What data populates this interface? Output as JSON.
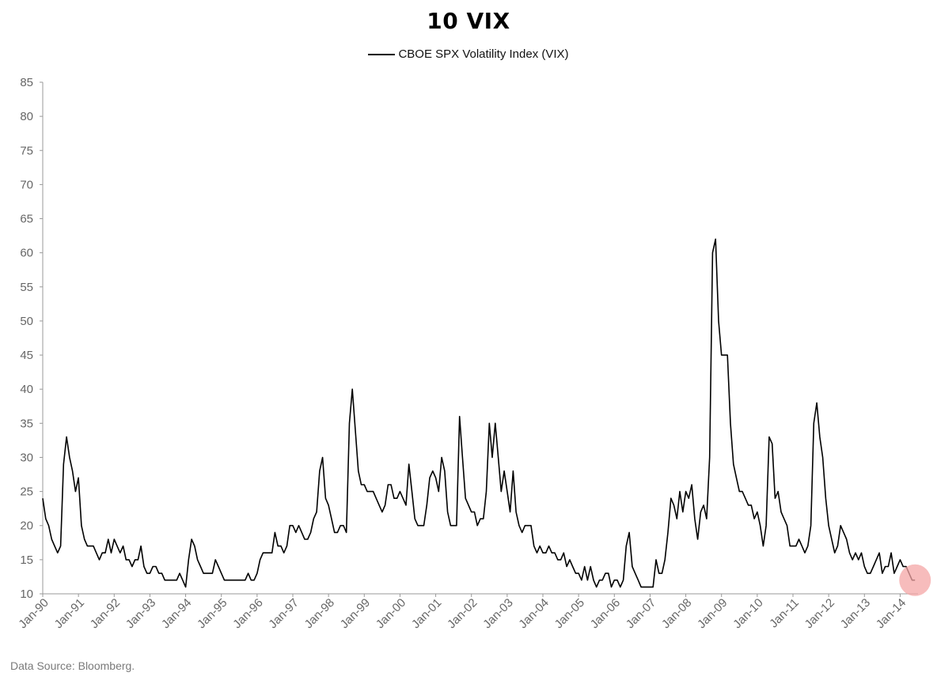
{
  "chart_data": {
    "type": "line",
    "title": "10 VIX",
    "source_note": "Data Source: Bloomberg.",
    "xlabel": "",
    "ylabel": "",
    "ylim": [
      10,
      85
    ],
    "yticks": [
      10,
      15,
      20,
      25,
      30,
      35,
      40,
      45,
      50,
      55,
      60,
      65,
      70,
      75,
      80,
      85
    ],
    "xticks": [
      "Jan-90",
      "Jan-91",
      "Jan-92",
      "Jan-93",
      "Jan-94",
      "Jan-95",
      "Jan-96",
      "Jan-97",
      "Jan-98",
      "Jan-99",
      "Jan-00",
      "Jan-01",
      "Jan-02",
      "Jan-03",
      "Jan-04",
      "Jan-05",
      "Jan-06",
      "Jan-07",
      "Jan-08",
      "Jan-09",
      "Jan-10",
      "Jan-11",
      "Jan-12",
      "Jan-13",
      "Jan-14"
    ],
    "xlim": [
      "1990-01",
      "2014-07"
    ],
    "grid": false,
    "legend_position": "top-center",
    "highlight": {
      "x": "2014-06",
      "y": 12,
      "color": "#f4a6a6"
    },
    "series": [
      {
        "name": "CBOE SPX Volatility Index (VIX)",
        "color": "#000000",
        "x": [
          "1990-01",
          "1990-02",
          "1990-03",
          "1990-04",
          "1990-05",
          "1990-06",
          "1990-07",
          "1990-08",
          "1990-09",
          "1990-10",
          "1990-11",
          "1990-12",
          "1991-01",
          "1991-02",
          "1991-03",
          "1991-04",
          "1991-05",
          "1991-06",
          "1991-07",
          "1991-08",
          "1991-09",
          "1991-10",
          "1991-11",
          "1991-12",
          "1992-01",
          "1992-02",
          "1992-03",
          "1992-04",
          "1992-05",
          "1992-06",
          "1992-07",
          "1992-08",
          "1992-09",
          "1992-10",
          "1992-11",
          "1992-12",
          "1993-01",
          "1993-02",
          "1993-03",
          "1993-04",
          "1993-05",
          "1993-06",
          "1993-07",
          "1993-08",
          "1993-09",
          "1993-10",
          "1993-11",
          "1993-12",
          "1994-01",
          "1994-02",
          "1994-03",
          "1994-04",
          "1994-05",
          "1994-06",
          "1994-07",
          "1994-08",
          "1994-09",
          "1994-10",
          "1994-11",
          "1994-12",
          "1995-01",
          "1995-02",
          "1995-03",
          "1995-04",
          "1995-05",
          "1995-06",
          "1995-07",
          "1995-08",
          "1995-09",
          "1995-10",
          "1995-11",
          "1995-12",
          "1996-01",
          "1996-02",
          "1996-03",
          "1996-04",
          "1996-05",
          "1996-06",
          "1996-07",
          "1996-08",
          "1996-09",
          "1996-10",
          "1996-11",
          "1996-12",
          "1997-01",
          "1997-02",
          "1997-03",
          "1997-04",
          "1997-05",
          "1997-06",
          "1997-07",
          "1997-08",
          "1997-09",
          "1997-10",
          "1997-11",
          "1997-12",
          "1998-01",
          "1998-02",
          "1998-03",
          "1998-04",
          "1998-05",
          "1998-06",
          "1998-07",
          "1998-08",
          "1998-09",
          "1998-10",
          "1998-11",
          "1998-12",
          "1999-01",
          "1999-02",
          "1999-03",
          "1999-04",
          "1999-05",
          "1999-06",
          "1999-07",
          "1999-08",
          "1999-09",
          "1999-10",
          "1999-11",
          "1999-12",
          "2000-01",
          "2000-02",
          "2000-03",
          "2000-04",
          "2000-05",
          "2000-06",
          "2000-07",
          "2000-08",
          "2000-09",
          "2000-10",
          "2000-11",
          "2000-12",
          "2001-01",
          "2001-02",
          "2001-03",
          "2001-04",
          "2001-05",
          "2001-06",
          "2001-07",
          "2001-08",
          "2001-09",
          "2001-10",
          "2001-11",
          "2001-12",
          "2002-01",
          "2002-02",
          "2002-03",
          "2002-04",
          "2002-05",
          "2002-06",
          "2002-07",
          "2002-08",
          "2002-09",
          "2002-10",
          "2002-11",
          "2002-12",
          "2003-01",
          "2003-02",
          "2003-03",
          "2003-04",
          "2003-05",
          "2003-06",
          "2003-07",
          "2003-08",
          "2003-09",
          "2003-10",
          "2003-11",
          "2003-12",
          "2004-01",
          "2004-02",
          "2004-03",
          "2004-04",
          "2004-05",
          "2004-06",
          "2004-07",
          "2004-08",
          "2004-09",
          "2004-10",
          "2004-11",
          "2004-12",
          "2005-01",
          "2005-02",
          "2005-03",
          "2005-04",
          "2005-05",
          "2005-06",
          "2005-07",
          "2005-08",
          "2005-09",
          "2005-10",
          "2005-11",
          "2005-12",
          "2006-01",
          "2006-02",
          "2006-03",
          "2006-04",
          "2006-05",
          "2006-06",
          "2006-07",
          "2006-08",
          "2006-09",
          "2006-10",
          "2006-11",
          "2006-12",
          "2007-01",
          "2007-02",
          "2007-03",
          "2007-04",
          "2007-05",
          "2007-06",
          "2007-07",
          "2007-08",
          "2007-09",
          "2007-10",
          "2007-11",
          "2007-12",
          "2008-01",
          "2008-02",
          "2008-03",
          "2008-04",
          "2008-05",
          "2008-06",
          "2008-07",
          "2008-08",
          "2008-09",
          "2008-10",
          "2008-11",
          "2008-12",
          "2009-01",
          "2009-02",
          "2009-03",
          "2009-04",
          "2009-05",
          "2009-06",
          "2009-07",
          "2009-08",
          "2009-09",
          "2009-10",
          "2009-11",
          "2009-12",
          "2010-01",
          "2010-02",
          "2010-03",
          "2010-04",
          "2010-05",
          "2010-06",
          "2010-07",
          "2010-08",
          "2010-09",
          "2010-10",
          "2010-11",
          "2010-12",
          "2011-01",
          "2011-02",
          "2011-03",
          "2011-04",
          "2011-05",
          "2011-06",
          "2011-07",
          "2011-08",
          "2011-09",
          "2011-10",
          "2011-11",
          "2011-12",
          "2012-01",
          "2012-02",
          "2012-03",
          "2012-04",
          "2012-05",
          "2012-06",
          "2012-07",
          "2012-08",
          "2012-09",
          "2012-10",
          "2012-11",
          "2012-12",
          "2013-01",
          "2013-02",
          "2013-03",
          "2013-04",
          "2013-05",
          "2013-06",
          "2013-07",
          "2013-08",
          "2013-09",
          "2013-10",
          "2013-11",
          "2013-12",
          "2014-01",
          "2014-02",
          "2014-03",
          "2014-04",
          "2014-05",
          "2014-06"
        ],
        "y": [
          24,
          21,
          20,
          18,
          17,
          16,
          17,
          29,
          33,
          30,
          28,
          25,
          27,
          20,
          18,
          17,
          17,
          17,
          16,
          15,
          16,
          16,
          18,
          16,
          18,
          17,
          16,
          17,
          15,
          15,
          14,
          15,
          15,
          17,
          14,
          13,
          13,
          14,
          14,
          13,
          13,
          12,
          12,
          12,
          12,
          12,
          13,
          12,
          11,
          15,
          18,
          17,
          15,
          14,
          13,
          13,
          13,
          13,
          15,
          14,
          13,
          12,
          12,
          12,
          12,
          12,
          12,
          12,
          12,
          13,
          12,
          12,
          13,
          15,
          16,
          16,
          16,
          16,
          19,
          17,
          17,
          16,
          17,
          20,
          20,
          19,
          20,
          19,
          18,
          18,
          19,
          21,
          22,
          28,
          30,
          24,
          23,
          21,
          19,
          19,
          20,
          20,
          19,
          35,
          40,
          34,
          28,
          26,
          26,
          25,
          25,
          25,
          24,
          23,
          22,
          23,
          26,
          26,
          24,
          24,
          25,
          24,
          23,
          29,
          25,
          21,
          20,
          20,
          20,
          23,
          27,
          28,
          27,
          25,
          30,
          28,
          22,
          20,
          20,
          20,
          36,
          30,
          24,
          23,
          22,
          22,
          20,
          21,
          21,
          25,
          35,
          30,
          35,
          30,
          25,
          28,
          25,
          22,
          28,
          22,
          20,
          19,
          20,
          20,
          20,
          17,
          16,
          17,
          16,
          16,
          17,
          16,
          16,
          15,
          15,
          16,
          14,
          15,
          14,
          13,
          13,
          12,
          14,
          12,
          14,
          12,
          11,
          12,
          12,
          13,
          13,
          11,
          12,
          12,
          11,
          12,
          17,
          19,
          14,
          13,
          12,
          11,
          11,
          11,
          11,
          11,
          15,
          13,
          13,
          15,
          19,
          24,
          23,
          21,
          25,
          22,
          25,
          24,
          26,
          21,
          18,
          22,
          23,
          21,
          30,
          60,
          62,
          50,
          45,
          45,
          45,
          35,
          29,
          27,
          25,
          25,
          24,
          23,
          23,
          21,
          22,
          20,
          17,
          20,
          33,
          32,
          24,
          25,
          22,
          21,
          20,
          17,
          17,
          17,
          18,
          17,
          16,
          17,
          20,
          35,
          38,
          33,
          30,
          24,
          20,
          18,
          16,
          17,
          20,
          19,
          18,
          16,
          15,
          16,
          15,
          16,
          14,
          13,
          13,
          14,
          15,
          16,
          13,
          14,
          14,
          16,
          13,
          14,
          15,
          14,
          14,
          13,
          12,
          12
        ]
      }
    ]
  }
}
